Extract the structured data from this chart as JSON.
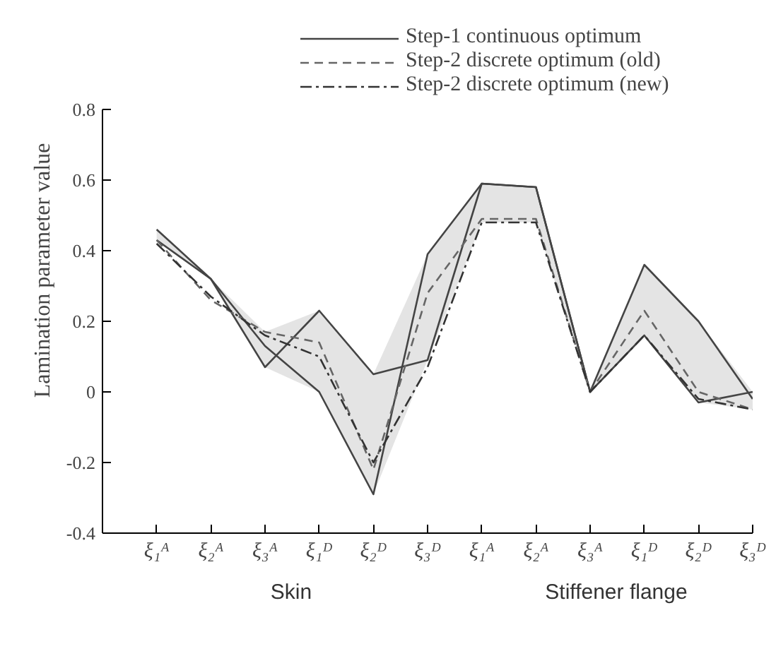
{
  "chart_data": {
    "type": "line",
    "ylabel": "Lamination parameter value",
    "categories": [
      "ξ₁ᴬ",
      "ξ₂ᴬ",
      "ξ₃ᴬ",
      "ξ₁ᴰ",
      "ξ₂ᴰ",
      "ξ₃ᴰ",
      "ξ₁ᴬ",
      "ξ₂ᴬ",
      "ξ₃ᴬ",
      "ξ₁ᴰ",
      "ξ₂ᴰ",
      "ξ₃ᴰ"
    ],
    "series": [
      {
        "name": "Step-1 continuous optimum",
        "color": "#444444",
        "line_style": "solid",
        "values": [
          0.43,
          0.32,
          0.13,
          0.0,
          -0.29,
          0.39,
          0.59,
          0.58,
          0.0,
          0.16,
          -0.03,
          0.0
        ],
        "lower": [
          0.43,
          0.32,
          0.07,
          0.0,
          -0.29,
          0.09,
          0.48,
          0.48,
          0.0,
          0.16,
          -0.03,
          -0.05
        ],
        "upper": [
          0.46,
          0.32,
          0.17,
          0.23,
          0.05,
          0.39,
          0.59,
          0.58,
          0.0,
          0.36,
          0.2,
          0.0
        ]
      },
      {
        "color": "#444444",
        "line_style": "solid",
        "values": [
          0.46,
          0.32,
          0.07,
          0.23,
          0.05,
          0.09,
          0.59,
          0.58,
          0.0,
          0.36,
          0.2,
          -0.02
        ]
      },
      {
        "name": "Step-2 discrete optimum (old)",
        "color": "#666666",
        "line_style": "dashed",
        "values": [
          0.43,
          0.26,
          0.17,
          0.14,
          -0.22,
          0.28,
          0.49,
          0.49,
          0.0,
          0.23,
          0.0,
          -0.05
        ]
      },
      {
        "name": "Step-2 discrete optimum (new)",
        "color": "#333333",
        "line_style": "dashdot",
        "values": [
          0.42,
          0.27,
          0.16,
          0.1,
          -0.2,
          0.07,
          0.48,
          0.48,
          0.0,
          0.16,
          -0.02,
          -0.05
        ]
      }
    ],
    "ylim": [
      -0.4,
      0.8
    ],
    "yticks": [
      {
        "value": -0.4,
        "label": "-0.4"
      },
      {
        "value": -0.2,
        "label": "-0.2"
      },
      0,
      0.2,
      0.4,
      0.6,
      0.8
    ],
    "grid": false,
    "legend": "top",
    "annotations": [
      "Skin",
      "Stiffener flange"
    ]
  }
}
